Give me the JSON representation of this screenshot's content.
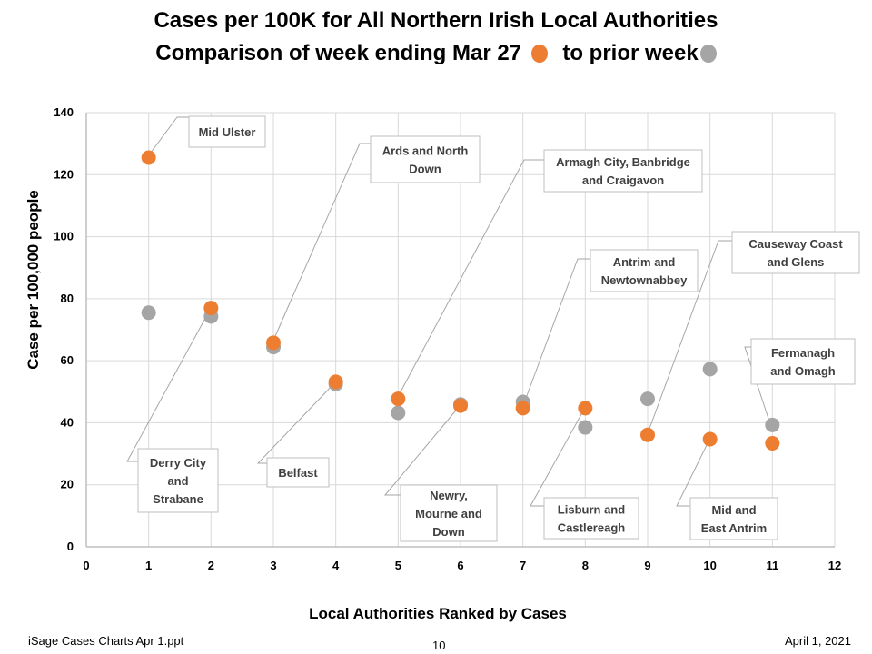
{
  "title": {
    "line1": "Cases per 100K for All Northern Irish Local Authorities",
    "line2_prefix": "Comparison of week ending Mar 27",
    "line2_mid": "to prior week"
  },
  "colors": {
    "current_week": "#ED7D31",
    "prior_week": "#A5A5A5",
    "grid": "#D9D9D9",
    "axis": "#BFBFBF",
    "callout_line": "#A6A6A6"
  },
  "footer": {
    "left": "iSage  Cases Charts Apr 1.ppt",
    "center": "10",
    "right": "April 1, 2021"
  },
  "chart_data": {
    "type": "scatter",
    "xlabel": "Local Authorities Ranked by Cases",
    "ylabel": "Case per 100,000 people",
    "xlim": [
      0,
      12
    ],
    "ylim": [
      0,
      140
    ],
    "x_ticks": [
      "0",
      "1",
      "2",
      "3",
      "4",
      "5",
      "6",
      "7",
      "8",
      "9",
      "10",
      "11",
      "12"
    ],
    "y_ticks": [
      "0",
      "20",
      "40",
      "60",
      "80",
      "100",
      "120",
      "140"
    ],
    "grid": true,
    "legend": "in title",
    "series": [
      {
        "color_key": "prior_week",
        "x": [
          1,
          2,
          3,
          4,
          5,
          6,
          7,
          8,
          9,
          10,
          11
        ],
        "y": [
          75.5,
          74.3,
          64.4,
          52.5,
          43.2,
          45.9,
          46.7,
          38.5,
          47.7,
          57.3,
          39.3
        ]
      },
      {
        "color_key": "current_week",
        "x": [
          1,
          2,
          3,
          4,
          5,
          6,
          7,
          8,
          9,
          10,
          11
        ],
        "y": [
          125.5,
          77.0,
          65.8,
          53.2,
          47.7,
          45.5,
          44.7,
          44.7,
          36.1,
          34.7,
          33.4
        ]
      }
    ],
    "annotations": [
      {
        "lines": [
          "Mid Ulster"
        ],
        "x": 1,
        "y": 125.5
      },
      {
        "lines": [
          "Derry City",
          "and",
          "Strabane"
        ],
        "x": 2,
        "y": 77.0
      },
      {
        "lines": [
          "Ards and North",
          "Down"
        ],
        "x": 3,
        "y": 65.8
      },
      {
        "lines": [
          "Belfast"
        ],
        "x": 4,
        "y": 53.2
      },
      {
        "lines": [
          "Armagh City, Banbridge",
          "and Craigavon"
        ],
        "x": 5,
        "y": 47.7
      },
      {
        "lines": [
          "Newry,",
          "Mourne and",
          "Down"
        ],
        "x": 6,
        "y": 45.5
      },
      {
        "lines": [
          "Antrim and",
          "Newtownabbey"
        ],
        "x": 7,
        "y": 44.7
      },
      {
        "lines": [
          "Lisburn and",
          "Castlereagh"
        ],
        "x": 8,
        "y": 44.7
      },
      {
        "lines": [
          "Causeway Coast",
          "and Glens"
        ],
        "x": 9,
        "y": 36.1
      },
      {
        "lines": [
          "Mid and",
          "East Antrim"
        ],
        "x": 10,
        "y": 34.7
      },
      {
        "lines": [
          "Fermanagh",
          "and Omagh"
        ],
        "x": 11,
        "y": 39.3
      }
    ]
  }
}
